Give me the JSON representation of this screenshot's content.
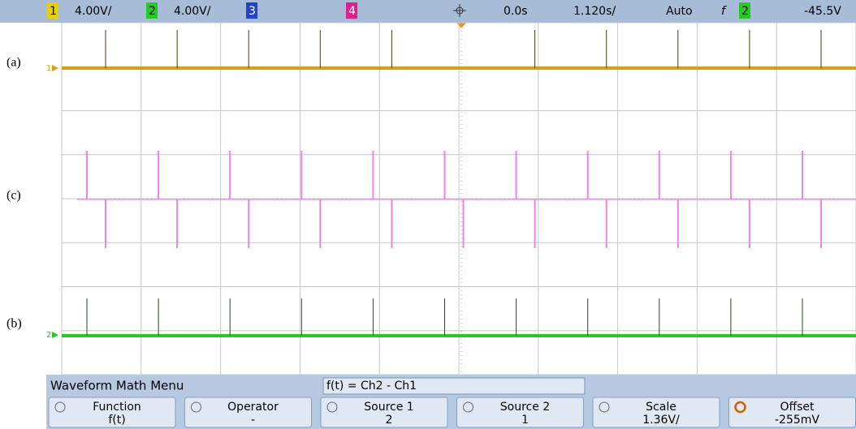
{
  "top_bar": {
    "ch1_label": "1",
    "ch1_scale": "4.00V/",
    "ch2_label": "2",
    "ch2_scale": "4.00V/",
    "ch3_label": "3",
    "ch4_label": "4",
    "time_delay": "0.0s",
    "time_scale": "1.120s/",
    "trigger_mode": "Auto",
    "trigger_slope": "f",
    "trigger_source": "2",
    "trigger_level": "-45.5V"
  },
  "trace_labels": [
    "(a)",
    "(c)",
    "(b)"
  ],
  "markers": [
    "1",
    "2"
  ],
  "menu": {
    "title": "Waveform Math Menu",
    "expression": "f(t) = Ch2 - Ch1",
    "softkeys": [
      {
        "label": "Function",
        "value": "f(t)"
      },
      {
        "label": "Operator",
        "value": "-"
      },
      {
        "label": "Source 1",
        "value": "2"
      },
      {
        "label": "Source 2",
        "value": "1"
      },
      {
        "label": "Scale",
        "value": "1.36V/"
      },
      {
        "label": "Offset",
        "value": "-255mV"
      }
    ]
  }
}
